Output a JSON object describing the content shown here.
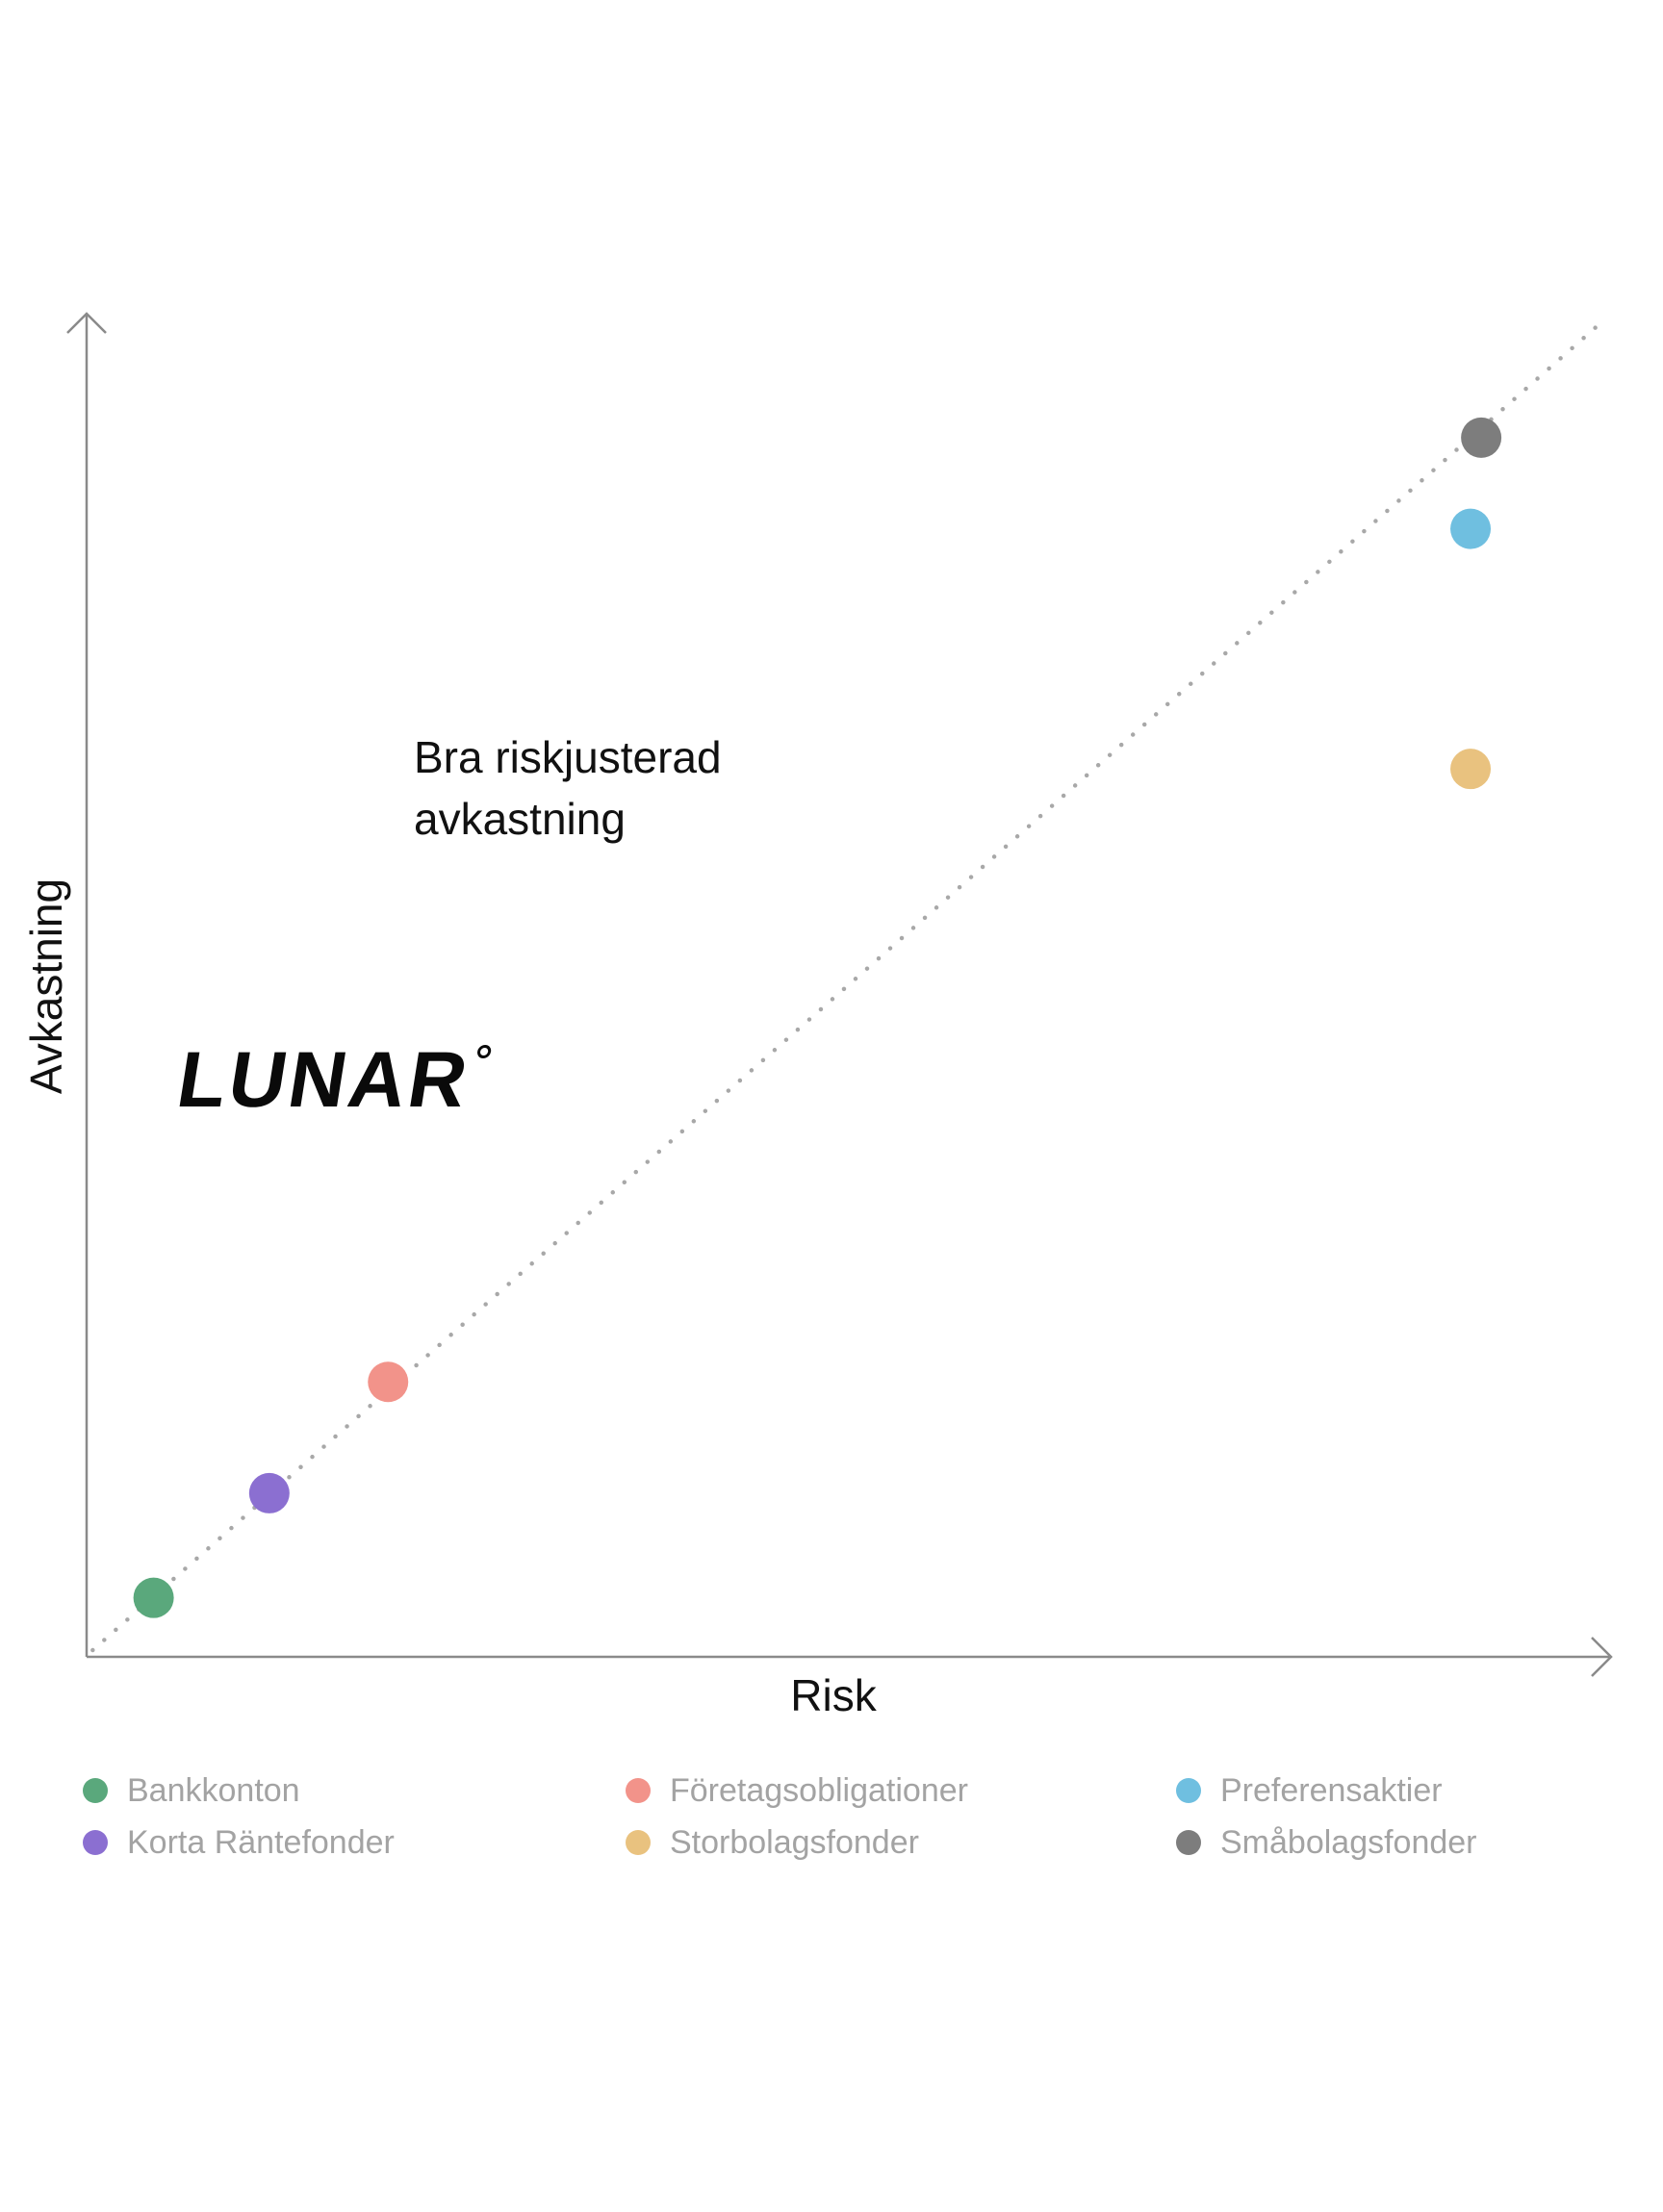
{
  "chart_data": {
    "type": "scatter",
    "title": "",
    "xlabel": "Risk",
    "ylabel": "Avkastning",
    "xlim": [
      0,
      100
    ],
    "ylim": [
      0,
      100
    ],
    "grid": false,
    "legend_position": "bottom",
    "annotation": [
      "Bra riskjusterad",
      "avkastning"
    ],
    "trend_line": {
      "style": "dotted",
      "color": "#a8a8a8",
      "from": [
        0.4,
        0.5
      ],
      "to": [
        99.3,
        99.3
      ]
    },
    "series": [
      {
        "name": "Bankkonton",
        "color": "#5aa87c",
        "x": 4.4,
        "y": 4.4
      },
      {
        "name": "Korta Räntefonder",
        "color": "#8b6fd1",
        "x": 12.0,
        "y": 12.2
      },
      {
        "name": "Företagsobligationer",
        "color": "#f2938a",
        "x": 19.8,
        "y": 20.5
      },
      {
        "name": "Preferensaktier",
        "color": "#6fbfe0",
        "x": 90.9,
        "y": 84.1
      },
      {
        "name": "Storbolagsfonder",
        "color": "#e9c27f",
        "x": 90.9,
        "y": 66.2
      },
      {
        "name": "Småbolagsfonder",
        "color": "#7d7d7d",
        "x": 91.6,
        "y": 90.9
      }
    ]
  },
  "logo": {
    "text": "LUNAR"
  }
}
